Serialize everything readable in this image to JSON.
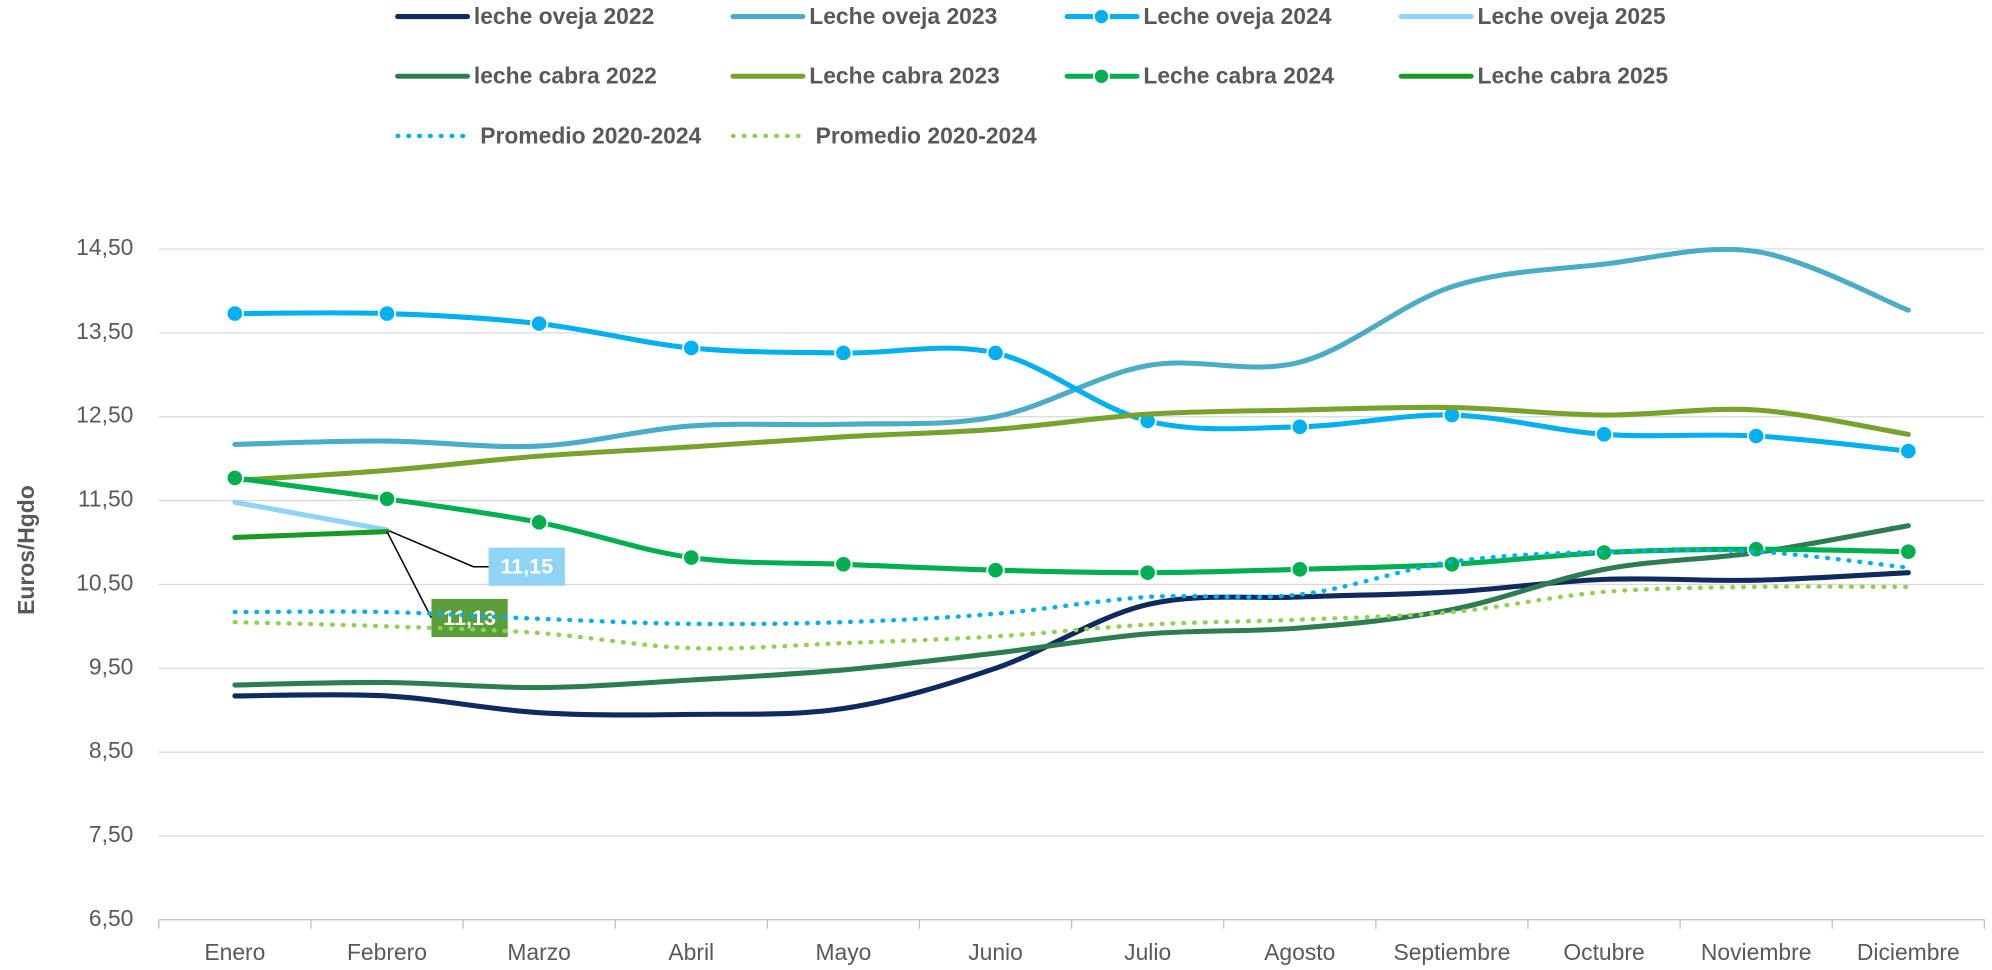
{
  "chart_data": {
    "type": "line",
    "y_label": "Euros/Hgdo",
    "categories": [
      "Enero",
      "Febrero",
      "Marzo",
      "Abril",
      "Mayo",
      "Junio",
      "Julio",
      "Agosto",
      "Septiembre",
      "Octubre",
      "Noviembre",
      "Diciembre"
    ],
    "ylim": [
      6.5,
      14.5
    ],
    "yticks": [
      {
        "value": 6.5,
        "label": "6,50"
      },
      {
        "value": 7.5,
        "label": "7,50"
      },
      {
        "value": 8.5,
        "label": "8,50"
      },
      {
        "value": 9.5,
        "label": "9,50"
      },
      {
        "value": 10.5,
        "label": "10,50"
      },
      {
        "value": 11.5,
        "label": "11,50"
      },
      {
        "value": 12.5,
        "label": "12,50"
      },
      {
        "value": 13.5,
        "label": "13,50"
      },
      {
        "value": 14.5,
        "label": "14,50"
      }
    ],
    "grid": true,
    "smooth": true,
    "legend_position": "top",
    "series": [
      {
        "name": "leche oveja 2022",
        "color": "#0f2a5e",
        "values": [
          9.17,
          9.17,
          8.97,
          8.95,
          9.02,
          9.5,
          10.26,
          10.35,
          10.41,
          10.56,
          10.55,
          10.64
        ]
      },
      {
        "name": "Leche oveja 2023",
        "color": "#4bacc6",
        "values": [
          12.17,
          12.21,
          12.15,
          12.39,
          12.41,
          12.5,
          13.11,
          13.15,
          14.05,
          14.32,
          14.47,
          13.77
        ]
      },
      {
        "name": "Leche oveja 2024",
        "color": "#00b0f0",
        "marker": true,
        "values": [
          13.73,
          13.73,
          13.61,
          13.32,
          13.26,
          13.26,
          12.45,
          12.38,
          12.52,
          12.29,
          12.27,
          12.09
        ]
      },
      {
        "name": "Leche oveja 2025",
        "color": "#8fd3f5",
        "values": [
          11.48,
          11.15,
          null,
          null,
          null,
          null,
          null,
          null,
          null,
          null,
          null,
          null
        ],
        "value_labels": [
          null,
          "11,15",
          null,
          null,
          null,
          null,
          null,
          null,
          null,
          null,
          null,
          null
        ]
      },
      {
        "name": "leche cabra 2022",
        "color": "#2e7d52",
        "values": [
          9.3,
          9.33,
          9.27,
          9.36,
          9.48,
          9.68,
          9.91,
          9.98,
          10.2,
          10.68,
          10.88,
          11.2
        ]
      },
      {
        "name": "Leche cabra 2023",
        "color": "#77a22d",
        "values": [
          11.74,
          11.86,
          12.03,
          12.14,
          12.26,
          12.35,
          12.53,
          12.58,
          12.61,
          12.52,
          12.58,
          12.29
        ]
      },
      {
        "name": "Leche cabra 2024",
        "color": "#00b050",
        "marker": true,
        "values": [
          11.77,
          11.52,
          11.24,
          10.82,
          10.74,
          10.67,
          10.64,
          10.68,
          10.74,
          10.88,
          10.92,
          10.89
        ]
      },
      {
        "name": "Leche cabra 2025",
        "color": "#1a9a23",
        "values": [
          11.06,
          11.13,
          null,
          null,
          null,
          null,
          null,
          null,
          null,
          null,
          null,
          null
        ],
        "value_labels": [
          null,
          "11,13",
          null,
          null,
          null,
          null,
          null,
          null,
          null,
          null,
          null,
          null
        ]
      },
      {
        "name": "Promedio 2020-2024",
        "color": "#00b0f0",
        "dash": "dotted",
        "values": [
          10.17,
          10.17,
          10.09,
          10.03,
          10.05,
          10.15,
          10.35,
          10.38,
          10.77,
          10.89,
          10.89,
          10.7
        ]
      },
      {
        "name": "Promedio 2020-2024",
        "color": "#92d050",
        "dash": "dotted",
        "values": [
          10.05,
          10.0,
          9.92,
          9.74,
          9.8,
          9.88,
          10.02,
          10.08,
          10.17,
          10.41,
          10.47,
          10.47
        ]
      }
    ]
  }
}
